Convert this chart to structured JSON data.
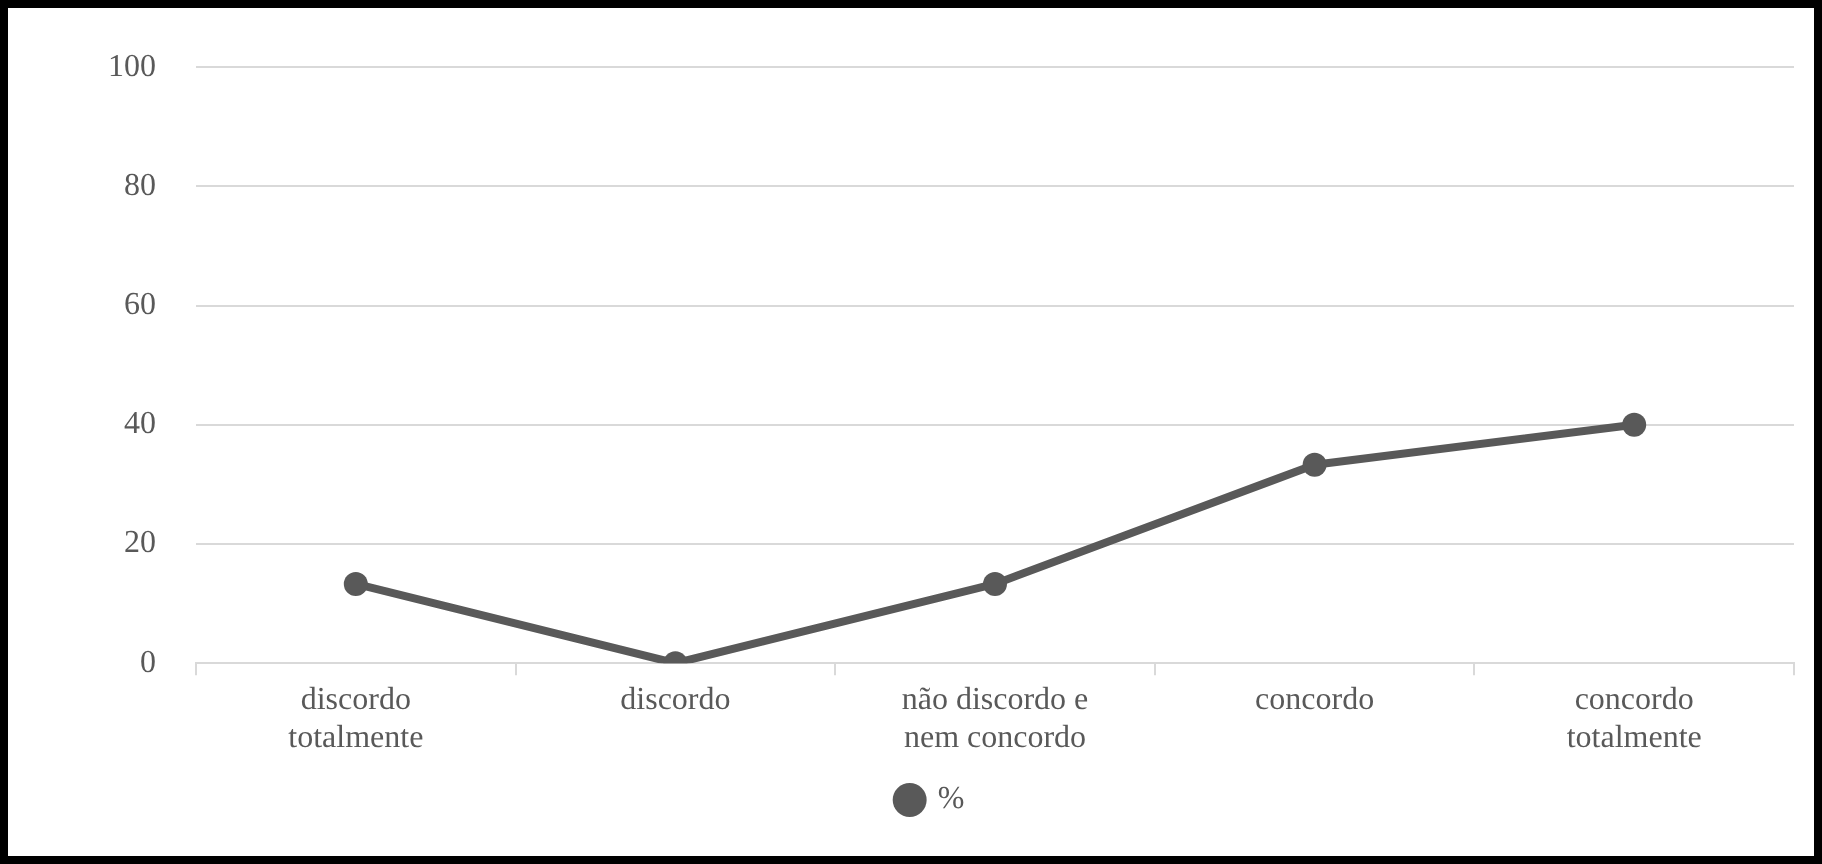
{
  "chart_data": {
    "type": "line",
    "categories": [
      "discordo totalmente",
      "discordo",
      "não discordo e nem concordo",
      "concordo",
      "concordo totalmente"
    ],
    "series": [
      {
        "name": "%",
        "color": "#595959",
        "values": [
          13.3,
          0,
          13.3,
          33.3,
          40
        ]
      }
    ],
    "ylim": [
      0,
      100
    ],
    "yticks": [
      0,
      20,
      40,
      60,
      80,
      100
    ],
    "grid": "y",
    "legend": "bottom",
    "marker": "circle",
    "line_style": "solid"
  }
}
